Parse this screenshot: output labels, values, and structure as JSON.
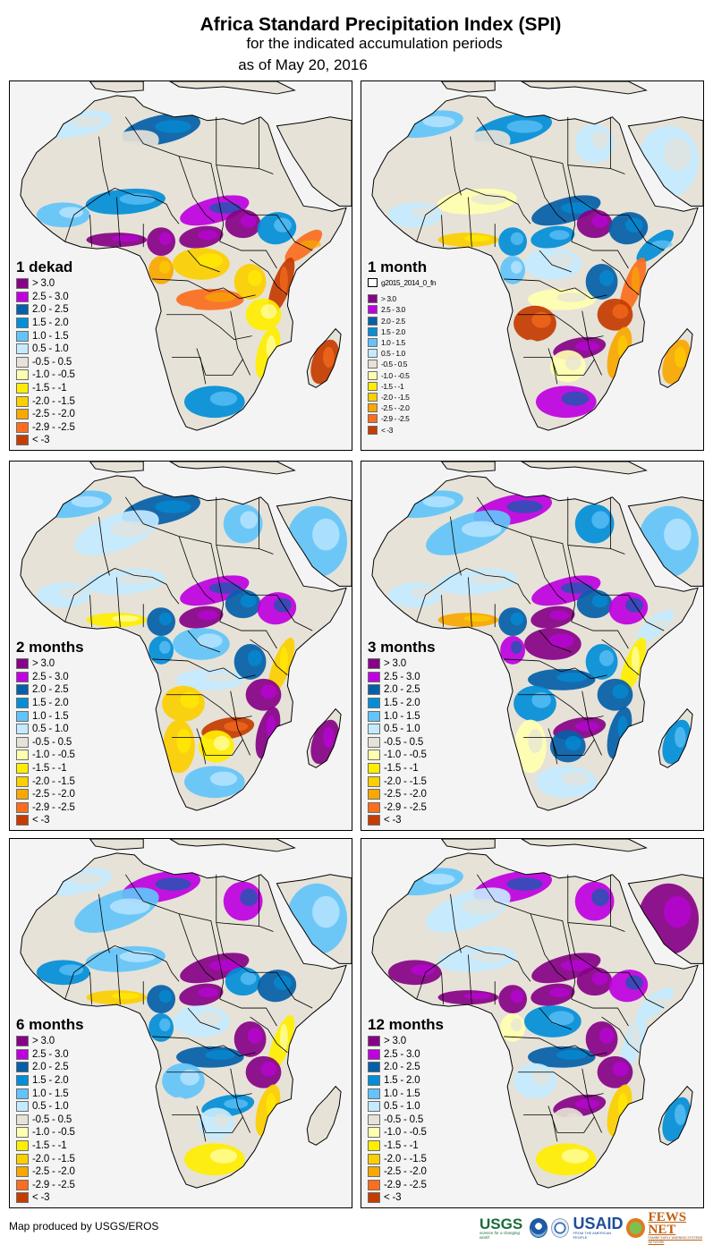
{
  "header": {
    "title": "Africa Standard Precipitation Index (SPI)",
    "subtitle": "for the indicated accumulation periods",
    "date_line": "as of May 20, 2016"
  },
  "legend_classes": [
    {
      "label": "> 3.0",
      "color": "#870287"
    },
    {
      "label": "2.5 - 3.0",
      "color": "#bf00e0"
    },
    {
      "label": "2.0 - 2.5",
      "color": "#0460a8"
    },
    {
      "label": "1.5 - 2.0",
      "color": "#028ed8"
    },
    {
      "label": "1.0 - 1.5",
      "color": "#62c4fa"
    },
    {
      "label": "0.5 - 1.0",
      "color": "#c4eaff"
    },
    {
      "label": "-0.5 - 0.5",
      "color": "#e6e2d8"
    },
    {
      "label": "-1.0 - -0.5",
      "color": "#ffffb0"
    },
    {
      "label": "-1.5 - -1",
      "color": "#ffee00"
    },
    {
      "label": "-2.0 - -1.5",
      "color": "#fccf00"
    },
    {
      "label": "-2.5 - -2.0",
      "color": "#f8a800"
    },
    {
      "label": "-2.9 - -2.5",
      "color": "#fa6e1e"
    },
    {
      "label": "< -3",
      "color": "#c43c00"
    }
  ],
  "ocean_color": "#f4f4f4",
  "border_color": "#000000",
  "panels": [
    {
      "id": "1-dekad",
      "title": "1 dekad",
      "extra_legend_item": null,
      "base_class": 6,
      "regions": {
        "maghreb": 5,
        "libya_north": 2,
        "sahara_west": 6,
        "sahara_central": 6,
        "egypt": 6,
        "sahel_west": 4,
        "sahel_central": 3,
        "sahel_east": 1,
        "gulf_guinea": 0,
        "cameroon": 0,
        "central_african_rep": 0,
        "south_sudan": 0,
        "ethiopia": 3,
        "horn": 11,
        "gabon_congo": 10,
        "congo_basin": 9,
        "drc_south": 11,
        "east_africa": 9,
        "kenya_coast": 12,
        "tanzania": 8,
        "angola": 6,
        "zambia": 6,
        "mozambique": 8,
        "namibia": 6,
        "botswana": 6,
        "south_africa": 3,
        "madagascar": 12,
        "arabia": 6
      }
    },
    {
      "id": "1-month",
      "title": "1 month",
      "extra_legend_item": "g2015_2014_0_fn",
      "base_class": 6,
      "regions": {
        "maghreb": 4,
        "libya_north": 3,
        "sahara_west": 6,
        "sahara_central": 6,
        "egypt": 5,
        "sahel_west": 5,
        "sahel_central": 7,
        "sahel_east": 2,
        "gulf_guinea": 9,
        "cameroon": 3,
        "central_african_rep": 3,
        "south_sudan": 0,
        "ethiopia": 2,
        "horn": 3,
        "gabon_congo": 4,
        "congo_basin": 5,
        "drc_south": 7,
        "east_africa": 2,
        "kenya_coast": 11,
        "tanzania": 12,
        "angola": 12,
        "zambia": 0,
        "mozambique": 10,
        "namibia": 6,
        "botswana": 7,
        "south_africa": 1,
        "madagascar": 10,
        "arabia": 5
      }
    },
    {
      "id": "2-months",
      "title": "2 months",
      "extra_legend_item": null,
      "base_class": 6,
      "regions": {
        "maghreb": 4,
        "libya_north": 2,
        "sahara_west": 5,
        "sahara_central": 6,
        "egypt": 4,
        "sahel_west": 5,
        "sahel_central": 5,
        "sahel_east": 1,
        "gulf_guinea": 8,
        "cameroon": 2,
        "central_african_rep": 0,
        "south_sudan": 2,
        "ethiopia": 1,
        "horn": 6,
        "gabon_congo": 3,
        "congo_basin": 4,
        "drc_south": 5,
        "east_africa": 2,
        "kenya_coast": 9,
        "tanzania": 0,
        "angola": 9,
        "zambia": 12,
        "mozambique": 0,
        "namibia": 9,
        "botswana": 8,
        "south_africa": 4,
        "madagascar": 0,
        "arabia": 4
      }
    },
    {
      "id": "3-months",
      "title": "3 months",
      "extra_legend_item": null,
      "base_class": 6,
      "regions": {
        "maghreb": 4,
        "libya_north": 1,
        "sahara_west": 4,
        "sahara_central": 6,
        "egypt": 3,
        "sahel_west": 5,
        "sahel_central": 5,
        "sahel_east": 1,
        "gulf_guinea": 10,
        "cameroon": 2,
        "central_african_rep": 0,
        "south_sudan": 2,
        "ethiopia": 1,
        "horn": 5,
        "gabon_congo": 1,
        "congo_basin": 0,
        "drc_south": 2,
        "east_africa": 3,
        "kenya_coast": 8,
        "tanzania": 2,
        "angola": 3,
        "zambia": 0,
        "mozambique": 2,
        "namibia": 7,
        "botswana": 2,
        "south_africa": 5,
        "madagascar": 3,
        "arabia": 4
      }
    },
    {
      "id": "6-months",
      "title": "6 months",
      "extra_legend_item": null,
      "base_class": 6,
      "regions": {
        "maghreb": 5,
        "libya_north": 1,
        "sahara_west": 4,
        "sahara_central": 6,
        "egypt": 1,
        "sahel_west": 3,
        "sahel_central": 4,
        "sahel_east": 0,
        "gulf_guinea": 9,
        "cameroon": 2,
        "central_african_rep": 0,
        "south_sudan": 3,
        "ethiopia": 2,
        "horn": 6,
        "gabon_congo": 3,
        "congo_basin": 5,
        "drc_south": 2,
        "east_africa": 0,
        "kenya_coast": 8,
        "tanzania": 0,
        "angola": 4,
        "zambia": 3,
        "mozambique": 9,
        "namibia": 6,
        "botswana": 5,
        "south_africa": 8,
        "madagascar": 6,
        "arabia": 4
      }
    },
    {
      "id": "12-months",
      "title": "12 months",
      "extra_legend_item": null,
      "base_class": 6,
      "regions": {
        "maghreb": 4,
        "libya_north": 1,
        "sahara_west": 5,
        "sahara_central": 6,
        "egypt": 1,
        "sahel_west": 0,
        "sahel_central": 5,
        "sahel_east": 0,
        "gulf_guinea": 0,
        "cameroon": 0,
        "central_african_rep": 0,
        "south_sudan": 0,
        "ethiopia": 1,
        "horn": 5,
        "gabon_congo": 7,
        "congo_basin": 3,
        "drc_south": 2,
        "east_africa": 0,
        "kenya_coast": 5,
        "tanzania": 0,
        "angola": 5,
        "zambia": 0,
        "mozambique": 9,
        "namibia": 6,
        "botswana": 6,
        "south_africa": 8,
        "madagascar": 3,
        "arabia": 0
      }
    }
  ],
  "footer": {
    "credit": "Map produced by USGS/EROS",
    "logos": {
      "usgs": "USGS",
      "usgs_tagline": "science for a changing world",
      "usaid": "USAID",
      "usaid_tagline": "FROM THE AMERICAN PEOPLE",
      "fews": "FEWS NET",
      "fews_tagline": "FAMINE EARLY WARNING SYSTEMS NETWORK"
    }
  }
}
